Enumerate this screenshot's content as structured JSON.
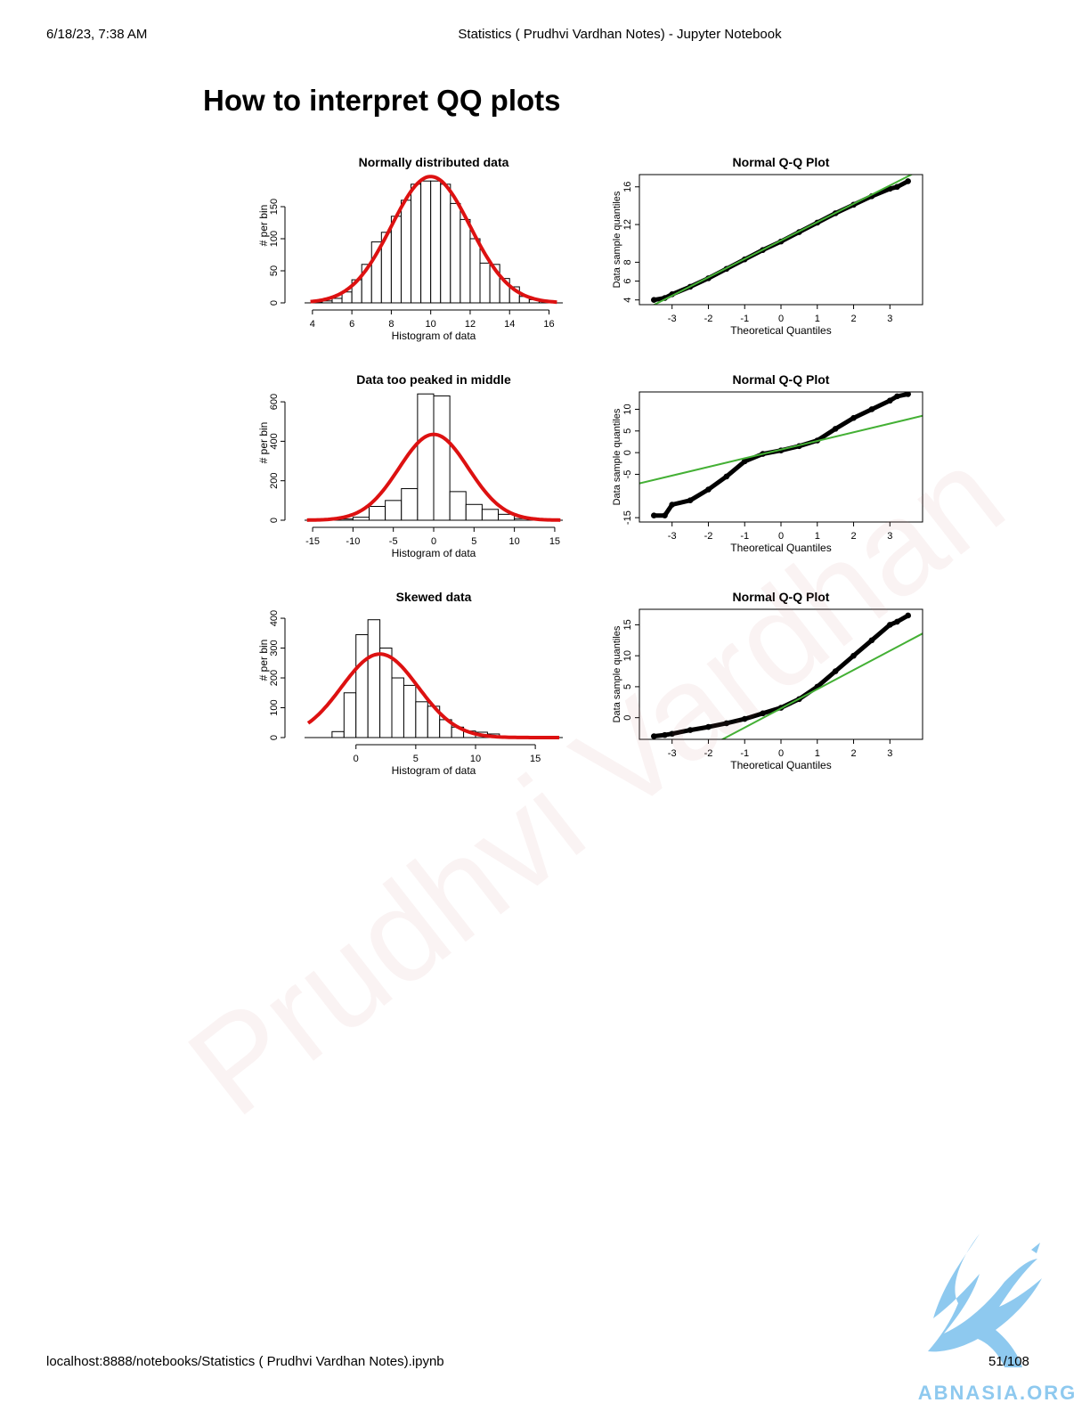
{
  "header": {
    "datetime": "6/18/23, 7:38 AM",
    "title": "Statistics ( Prudhvi Vardhan Notes) - Jupyter Notebook"
  },
  "footer": {
    "url": "localhost:8888/notebooks/Statistics ( Prudhvi Vardhan Notes).ipynb",
    "page": "51/108"
  },
  "heading": "How to interpret QQ plots",
  "watermark": "Prudhvi Vardhan",
  "logo": {
    "text": "ABNASIA.ORG",
    "icon": "griffin-logo-icon",
    "color": "#8ec9ef"
  },
  "colors": {
    "density": "#dd1111",
    "qq_line": "#44b035",
    "points": "#000000"
  },
  "chart_data": [
    {
      "type": "histogram",
      "title": "Normally distributed data",
      "xlabel": "Histogram of data",
      "ylabel": "# per bin",
      "xlim": [
        3.6,
        16.7
      ],
      "ylim": [
        0,
        200
      ],
      "xticks": [
        4,
        6,
        8,
        10,
        12,
        14,
        16
      ],
      "yticks": [
        0,
        50,
        100,
        150
      ],
      "bin_edges": [
        4,
        4.5,
        5,
        5.5,
        6,
        6.5,
        7,
        7.5,
        8,
        8.5,
        9,
        9.5,
        10,
        10.5,
        11,
        11.5,
        12,
        12.5,
        13,
        13.5,
        14,
        14.5,
        15,
        15.5,
        16
      ],
      "counts": [
        1,
        3,
        7,
        17,
        36,
        60,
        95,
        110,
        135,
        160,
        185,
        190,
        190,
        185,
        155,
        130,
        100,
        62,
        60,
        38,
        25,
        10,
        5,
        2
      ],
      "density_curve": {
        "mean": 10,
        "sd": 2,
        "peak": 197
      }
    },
    {
      "type": "scatter",
      "title": "Normal Q-Q Plot",
      "xlabel": "Theoretical Quantiles",
      "ylabel": "Data sample quantiles",
      "xlim": [
        -3.9,
        3.9
      ],
      "ylim": [
        3.5,
        17.3
      ],
      "xticks": [
        -3,
        -2,
        -1,
        0,
        1,
        2,
        3
      ],
      "yticks": [
        4,
        6,
        8,
        12,
        16
      ],
      "line": {
        "slope": 1.95,
        "intercept": 10.3
      },
      "points": [
        [
          -3.5,
          4.0
        ],
        [
          -3.2,
          4.2
        ],
        [
          -3.0,
          4.6
        ],
        [
          -2.5,
          5.4
        ],
        [
          -2.0,
          6.3
        ],
        [
          -1.5,
          7.3
        ],
        [
          -1.0,
          8.3
        ],
        [
          -0.5,
          9.3
        ],
        [
          0.0,
          10.2
        ],
        [
          0.5,
          11.2
        ],
        [
          1.0,
          12.2
        ],
        [
          1.5,
          13.2
        ],
        [
          2.0,
          14.1
        ],
        [
          2.5,
          15.0
        ],
        [
          3.0,
          15.8
        ],
        [
          3.2,
          16.0
        ],
        [
          3.5,
          16.6
        ]
      ]
    },
    {
      "type": "histogram",
      "title": "Data too peaked in middle",
      "xlabel": "Histogram of data",
      "ylabel": "# per bin",
      "xlim": [
        -16,
        16
      ],
      "ylim": [
        0,
        650
      ],
      "xticks": [
        -15,
        -10,
        -5,
        0,
        5,
        10,
        15
      ],
      "yticks": [
        0,
        200,
        400,
        600
      ],
      "bin_edges": [
        -14,
        -12,
        -10,
        -8,
        -6,
        -4,
        -2,
        0,
        2,
        4,
        6,
        8,
        10,
        12,
        14
      ],
      "counts": [
        2,
        6,
        15,
        70,
        100,
        160,
        640,
        630,
        145,
        80,
        55,
        30,
        8,
        3
      ],
      "density_curve": {
        "mean": 0,
        "sd": 4.3,
        "peak": 435
      }
    },
    {
      "type": "scatter",
      "title": "Normal Q-Q Plot",
      "xlabel": "Theoretical Quantiles",
      "ylabel": "Data sample quantiles",
      "xlim": [
        -3.9,
        3.9
      ],
      "ylim": [
        -16,
        14
      ],
      "xticks": [
        -3,
        -2,
        -1,
        0,
        1,
        2,
        3
      ],
      "yticks": [
        -15,
        -5,
        0,
        5,
        10
      ],
      "line": {
        "slope": 2.0,
        "intercept": 0.7
      },
      "points": [
        [
          -3.5,
          -14.5
        ],
        [
          -3.2,
          -14.5
        ],
        [
          -3.0,
          -12.0
        ],
        [
          -2.5,
          -11.0
        ],
        [
          -2.0,
          -8.5
        ],
        [
          -1.5,
          -5.5
        ],
        [
          -1.0,
          -2.0
        ],
        [
          -0.5,
          -0.3
        ],
        [
          0.0,
          0.5
        ],
        [
          0.5,
          1.5
        ],
        [
          1.0,
          2.8
        ],
        [
          1.5,
          5.5
        ],
        [
          2.0,
          8.0
        ],
        [
          2.5,
          10.0
        ],
        [
          3.0,
          12.0
        ],
        [
          3.2,
          13.0
        ],
        [
          3.5,
          13.5
        ]
      ]
    },
    {
      "type": "histogram",
      "title": "Skewed data",
      "xlabel": "Histogram of data",
      "ylabel": "# per bin",
      "xlim": [
        -4.3,
        17.3
      ],
      "ylim": [
        0,
        430
      ],
      "xticks": [
        0,
        5,
        10,
        15
      ],
      "yticks": [
        0,
        100,
        200,
        300,
        400
      ],
      "bin_edges": [
        -3,
        -2,
        -1,
        0,
        1,
        2,
        3,
        4,
        5,
        6,
        7,
        8,
        9,
        10,
        11,
        12
      ],
      "counts": [
        0,
        20,
        150,
        345,
        395,
        300,
        200,
        175,
        120,
        105,
        60,
        35,
        22,
        18,
        12
      ],
      "density_curve": {
        "mean": 2,
        "sd": 3.2,
        "peak": 280
      }
    },
    {
      "type": "scatter",
      "title": "Normal Q-Q Plot",
      "xlabel": "Theoretical Quantiles",
      "ylabel": "Data sample quantiles",
      "xlim": [
        -3.9,
        3.9
      ],
      "ylim": [
        -3.5,
        17.5
      ],
      "xticks": [
        -3,
        -2,
        -1,
        0,
        1,
        2,
        3
      ],
      "yticks": [
        0,
        5,
        10,
        15
      ],
      "line": {
        "slope": 3.1,
        "intercept": 1.5
      },
      "points": [
        [
          -3.5,
          -3.0
        ],
        [
          -3.2,
          -2.8
        ],
        [
          -3.0,
          -2.6
        ],
        [
          -2.5,
          -2.0
        ],
        [
          -2.0,
          -1.5
        ],
        [
          -1.5,
          -0.9
        ],
        [
          -1.0,
          -0.2
        ],
        [
          -0.5,
          0.7
        ],
        [
          0.0,
          1.6
        ],
        [
          0.5,
          3.0
        ],
        [
          1.0,
          5.0
        ],
        [
          1.5,
          7.5
        ],
        [
          2.0,
          10.0
        ],
        [
          2.5,
          12.5
        ],
        [
          3.0,
          15.0
        ],
        [
          3.2,
          15.5
        ],
        [
          3.5,
          16.5
        ]
      ]
    }
  ]
}
